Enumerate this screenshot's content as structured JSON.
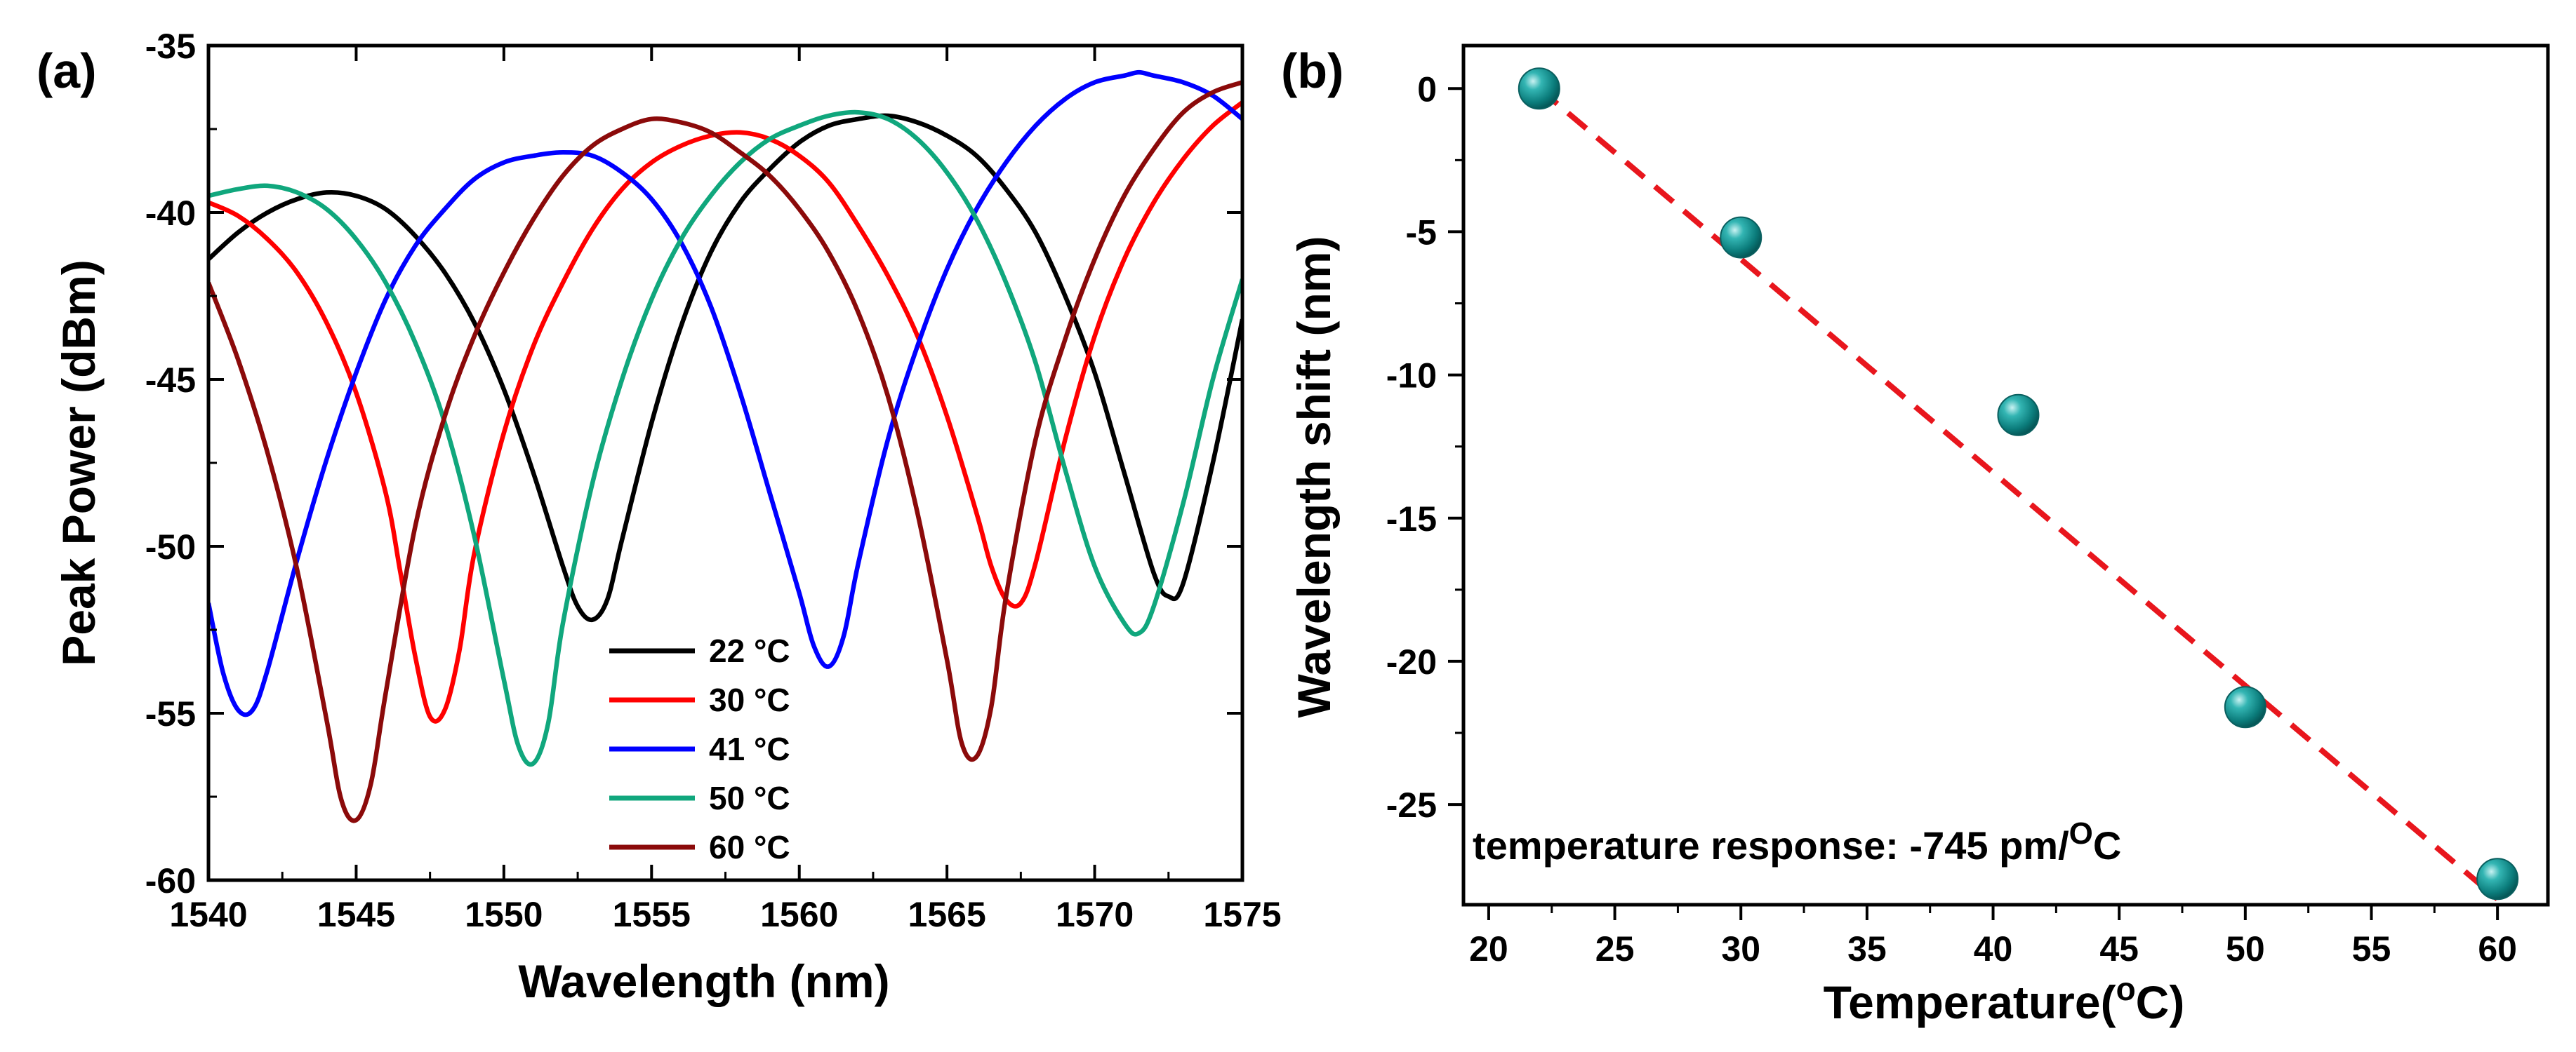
{
  "chart_data": [
    {
      "panel": "(a)",
      "type": "line",
      "xlabel": "Wavelength (nm)",
      "ylabel": "Peak Power (dBm)",
      "xlim": [
        1540,
        1575
      ],
      "ylim": [
        -60,
        -35
      ],
      "xticks": [
        "1540",
        "1545",
        "1550",
        "1555",
        "1560",
        "1565",
        "1570",
        "1575"
      ],
      "yticks": [
        "-60",
        "-55",
        "-50",
        "-45",
        "-40",
        "-35"
      ],
      "legend_position": "lower-center",
      "series": [
        {
          "name": "22 °C",
          "color": "#000000",
          "x": [
            1540,
            1541,
            1542,
            1543,
            1544,
            1545,
            1546,
            1547,
            1548,
            1549,
            1550,
            1551,
            1552,
            1552.5,
            1553,
            1553.5,
            1554,
            1555,
            1556,
            1557,
            1558,
            1559,
            1560,
            1561,
            1562,
            1563,
            1564,
            1565,
            1566,
            1567,
            1568,
            1569,
            1570,
            1571,
            1572,
            1572.5,
            1573,
            1574,
            1575
          ],
          "y": [
            -41.4,
            -40.6,
            -40.0,
            -39.6,
            -39.4,
            -39.5,
            -39.9,
            -40.7,
            -41.8,
            -43.3,
            -45.3,
            -47.8,
            -50.6,
            -51.8,
            -52.2,
            -51.6,
            -49.8,
            -46.3,
            -43.4,
            -41.2,
            -39.7,
            -38.7,
            -37.9,
            -37.4,
            -37.2,
            -37.1,
            -37.3,
            -37.7,
            -38.3,
            -39.3,
            -40.6,
            -42.5,
            -44.8,
            -47.8,
            -50.8,
            -51.5,
            -51.1,
            -47.5,
            -43.2
          ]
        },
        {
          "name": "30 °C",
          "color": "#ff0000",
          "x": [
            1540,
            1541,
            1542,
            1543,
            1544,
            1545,
            1546,
            1546.5,
            1547,
            1547.5,
            1548,
            1548.5,
            1549,
            1550,
            1551,
            1552,
            1553,
            1554,
            1555,
            1556,
            1557,
            1558,
            1559,
            1560,
            1561,
            1562,
            1563,
            1564,
            1565,
            1566,
            1566.5,
            1567,
            1567.5,
            1568,
            1569,
            1570,
            1571,
            1572,
            1573,
            1574,
            1575
          ],
          "y": [
            -39.7,
            -40.1,
            -40.8,
            -41.8,
            -43.3,
            -45.4,
            -48.4,
            -50.8,
            -53.3,
            -55.1,
            -54.9,
            -53.1,
            -50.2,
            -46.6,
            -44.0,
            -42.1,
            -40.5,
            -39.3,
            -38.5,
            -38.0,
            -37.7,
            -37.6,
            -37.8,
            -38.3,
            -39.1,
            -40.4,
            -41.9,
            -43.7,
            -46.1,
            -49.0,
            -50.6,
            -51.6,
            -51.7,
            -50.5,
            -46.8,
            -43.7,
            -41.4,
            -39.7,
            -38.4,
            -37.4,
            -36.7
          ]
        },
        {
          "name": "41 °C",
          "color": "#0000ff",
          "x": [
            1540,
            1540.5,
            1541,
            1541.5,
            1542,
            1543,
            1544,
            1545,
            1546,
            1547,
            1548,
            1549,
            1550,
            1551,
            1552,
            1553,
            1554,
            1555,
            1556,
            1557,
            1558,
            1559,
            1560,
            1560.5,
            1561,
            1561.5,
            1562,
            1563,
            1564,
            1565,
            1566,
            1567,
            1568,
            1569,
            1570,
            1571,
            1571.5,
            1572,
            1573,
            1574,
            1575
          ],
          "y": [
            -51.7,
            -53.8,
            -54.9,
            -54.9,
            -53.7,
            -50.4,
            -47.4,
            -44.8,
            -42.6,
            -41.0,
            -39.9,
            -39.0,
            -38.5,
            -38.3,
            -38.2,
            -38.3,
            -38.8,
            -39.6,
            -40.9,
            -42.8,
            -45.4,
            -48.4,
            -51.4,
            -53.0,
            -53.6,
            -52.7,
            -50.5,
            -46.8,
            -44.0,
            -41.7,
            -39.9,
            -38.5,
            -37.4,
            -36.6,
            -36.1,
            -35.9,
            -35.8,
            -35.9,
            -36.1,
            -36.5,
            -37.2
          ]
        },
        {
          "name": "50 °C",
          "color": "#10a77d",
          "x": [
            1540,
            1541,
            1542,
            1543,
            1544,
            1545,
            1546,
            1547,
            1548,
            1549,
            1550,
            1550.5,
            1551,
            1551.5,
            1552,
            1553,
            1554,
            1555,
            1556,
            1557,
            1558,
            1559,
            1560,
            1561,
            1562,
            1563,
            1564,
            1565,
            1566,
            1567,
            1568,
            1569,
            1570,
            1571,
            1571.5,
            1572,
            1573,
            1574,
            1575
          ],
          "y": [
            -39.5,
            -39.3,
            -39.2,
            -39.4,
            -39.9,
            -40.8,
            -42.1,
            -43.9,
            -46.3,
            -49.7,
            -54.0,
            -56.0,
            -56.5,
            -55.3,
            -52.3,
            -48.1,
            -45.0,
            -42.6,
            -40.8,
            -39.5,
            -38.5,
            -37.8,
            -37.4,
            -37.1,
            -37.0,
            -37.2,
            -37.8,
            -38.8,
            -40.2,
            -42.1,
            -44.5,
            -47.7,
            -50.6,
            -52.3,
            -52.6,
            -51.8,
            -48.7,
            -45.0,
            -42.0
          ]
        },
        {
          "name": "60 °C",
          "color": "#8b0a0a",
          "x": [
            1540,
            1541,
            1542,
            1543,
            1544,
            1544.5,
            1545,
            1545.5,
            1546,
            1547,
            1548,
            1549,
            1550,
            1551,
            1552,
            1553,
            1554,
            1555,
            1556,
            1557,
            1558,
            1559,
            1560,
            1561,
            1562,
            1563,
            1564,
            1565,
            1565.5,
            1566,
            1566.5,
            1567,
            1568,
            1569,
            1570,
            1571,
            1572,
            1573,
            1574,
            1575
          ],
          "y": [
            -42.1,
            -44.4,
            -47.2,
            -50.7,
            -55.2,
            -57.6,
            -58.2,
            -57.1,
            -54.4,
            -49.4,
            -46.1,
            -43.7,
            -41.8,
            -40.2,
            -38.9,
            -38.0,
            -37.5,
            -37.2,
            -37.3,
            -37.6,
            -38.2,
            -38.9,
            -39.9,
            -41.2,
            -43.0,
            -45.5,
            -49.0,
            -53.4,
            -55.9,
            -56.3,
            -54.8,
            -51.5,
            -46.8,
            -43.8,
            -41.4,
            -39.5,
            -38.1,
            -37.0,
            -36.4,
            -36.1
          ]
        }
      ]
    },
    {
      "panel": "(b)",
      "type": "scatter",
      "xlabel": "Temperature(",
      "xlabel_sup": "o",
      "xlabel_end": "C)",
      "ylabel": "Wavelength shift (nm)",
      "xlim": [
        19,
        62
      ],
      "ylim": [
        -28.5,
        1.5
      ],
      "xticks": [
        "20",
        "25",
        "30",
        "35",
        "40",
        "45",
        "50",
        "55",
        "60"
      ],
      "yticks": [
        "0",
        "-5",
        "-10",
        "-15",
        "-20",
        "-25"
      ],
      "points": {
        "x": [
          22,
          30,
          41,
          50,
          60
        ],
        "y": [
          0,
          -5.2,
          -11.4,
          -21.6,
          -27.6
        ],
        "color": "#008b8b"
      },
      "fit": {
        "slope": -0.745,
        "x_start": 22,
        "x_end": 60,
        "y_start": 0,
        "y_end": -28.3,
        "color": "#e8161d",
        "style": "dashed"
      },
      "annotation": "temperature response: -745 pm/",
      "annotation_sup": "O",
      "annotation_end": "C"
    }
  ]
}
